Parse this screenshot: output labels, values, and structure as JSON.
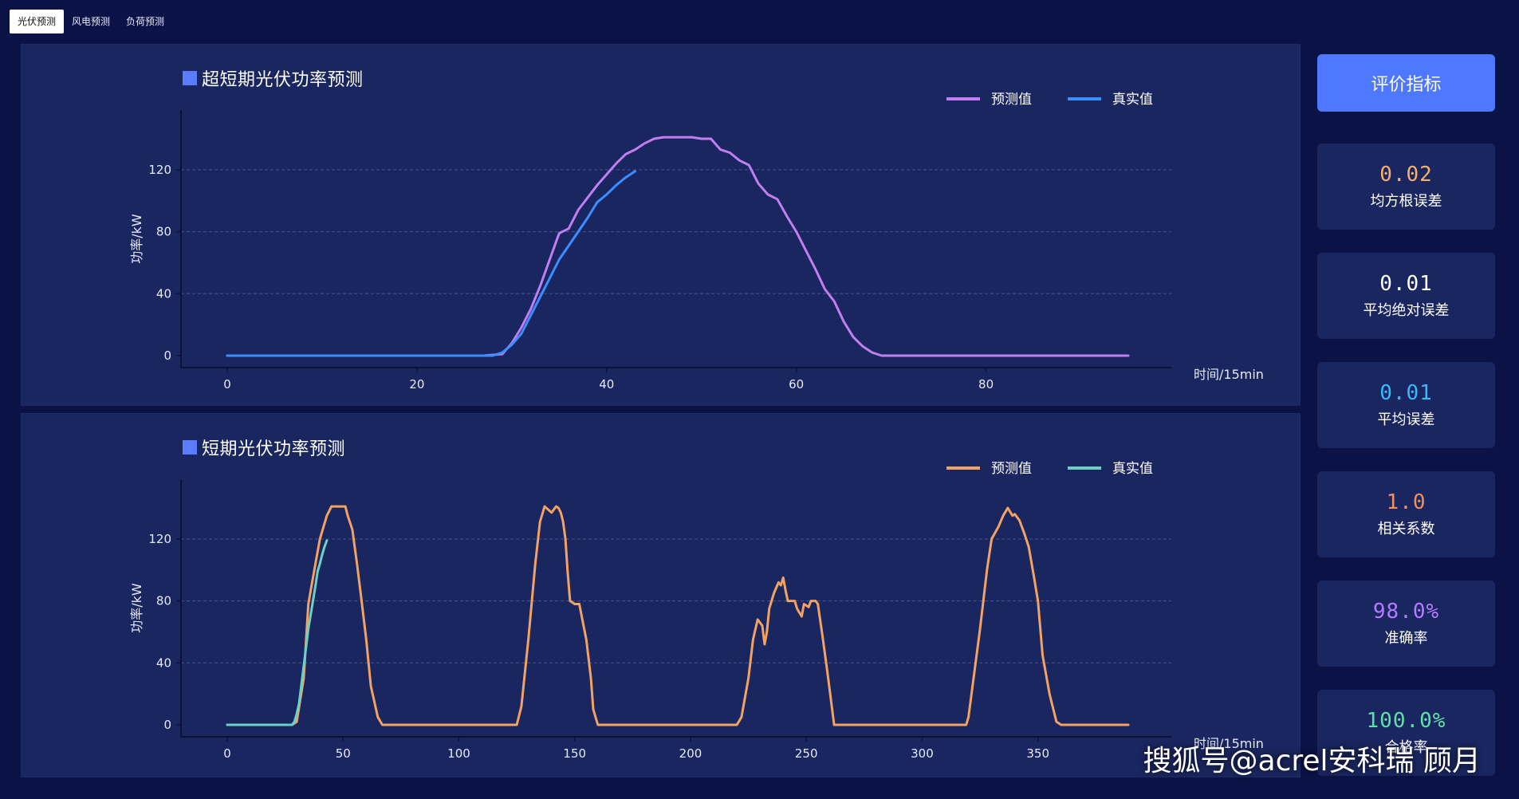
{
  "tabs": [
    {
      "label": "光伏预测",
      "active": true
    },
    {
      "label": "风电预测",
      "active": false
    },
    {
      "label": "负荷预测",
      "active": false
    }
  ],
  "sidebar": {
    "eval_label": "评价指标",
    "metrics": [
      {
        "value": "0.02",
        "label": "均方根误差",
        "color": "#f7b06a"
      },
      {
        "value": "0.01",
        "label": "平均绝对误差",
        "color": "#ffffff"
      },
      {
        "value": "0.01",
        "label": "平均误差",
        "color": "#39b8ff"
      },
      {
        "value": "1.0",
        "label": "相关系数",
        "color": "#f09060"
      },
      {
        "value": "98.0%",
        "label": "准确率",
        "color": "#b57aff"
      },
      {
        "value": "100.0%",
        "label": "合格率",
        "color": "#60e0a8"
      }
    ]
  },
  "watermark": "搜狐号@acrel安科瑞 顾月",
  "chart_data": [
    {
      "type": "line",
      "title": "超短期光伏功率预测",
      "xlabel": "时间/15min",
      "ylabel": "功率/kW",
      "xlim": [
        0,
        95
      ],
      "ylim": [
        0,
        140
      ],
      "xticks": [
        0,
        20,
        40,
        60,
        80
      ],
      "yticks": [
        0,
        40,
        80,
        120
      ],
      "grid": true,
      "legend": "top-right",
      "series": [
        {
          "name": "预测值",
          "color": "#c07ef0",
          "x": [
            0,
            10,
            20,
            27,
            29,
            30,
            31,
            32,
            33,
            34,
            35,
            36,
            37,
            38,
            39,
            40,
            41,
            42,
            43,
            44,
            45,
            46,
            47,
            48,
            49,
            50,
            51,
            52,
            53,
            54,
            55,
            56,
            57,
            58,
            59,
            60,
            61,
            62,
            63,
            64,
            65,
            66,
            67,
            68,
            69,
            70,
            80,
            95
          ],
          "y": [
            0,
            0,
            0,
            0,
            1,
            8,
            18,
            30,
            45,
            62,
            79,
            82,
            94,
            102,
            110,
            117,
            124,
            130,
            133,
            137,
            140,
            141,
            141,
            141,
            141,
            140,
            140,
            133,
            131,
            126,
            123,
            111,
            104,
            101,
            90,
            80,
            68,
            56,
            43,
            35,
            22,
            12,
            6,
            2,
            0,
            0,
            0,
            0
          ]
        },
        {
          "name": "真实值",
          "color": "#3a8eff",
          "x": [
            0,
            10,
            20,
            28,
            29,
            30,
            31,
            32,
            33,
            34,
            35,
            36,
            37,
            38,
            39,
            40,
            41,
            42,
            43
          ],
          "y": [
            0,
            0,
            0,
            0,
            2,
            7,
            14,
            26,
            38,
            50,
            62,
            71,
            80,
            89,
            99,
            104,
            110,
            115,
            119
          ]
        }
      ]
    },
    {
      "type": "line",
      "title": "短期光伏功率预测",
      "xlabel": "时间/15min",
      "ylabel": "功率/kW",
      "xlim": [
        0,
        389
      ],
      "ylim": [
        0,
        140
      ],
      "xticks": [
        0,
        50,
        100,
        150,
        200,
        250,
        300,
        350
      ],
      "yticks": [
        0,
        40,
        80,
        120
      ],
      "grid": true,
      "legend": "top-right",
      "series": [
        {
          "name": "预测值",
          "color": "#f2a265",
          "x": [
            0,
            28,
            30,
            33,
            35,
            37,
            40,
            43,
            45,
            47,
            48,
            50,
            51,
            52,
            54,
            56,
            58,
            60,
            62,
            65,
            67,
            69,
            70,
            125,
            127,
            130,
            133,
            135,
            137,
            140,
            142,
            143,
            144,
            145,
            146,
            147,
            148,
            150,
            152,
            155,
            157,
            158,
            160,
            163,
            165,
            167,
            220,
            222,
            225,
            227,
            229,
            231,
            232,
            233,
            234,
            236,
            238,
            239,
            240,
            241,
            242,
            245,
            246,
            248,
            249,
            251,
            252,
            254,
            255,
            257,
            259,
            262,
            319,
            320,
            325,
            328,
            330,
            333,
            335,
            337,
            339,
            340,
            342,
            344,
            346,
            348,
            350,
            352,
            355,
            358,
            360,
            362,
            389
          ],
          "y": [
            0,
            0,
            2,
            30,
            78,
            95,
            120,
            135,
            141,
            141,
            141,
            141,
            141,
            135,
            126,
            104,
            80,
            55,
            25,
            5,
            0,
            0,
            0,
            0,
            12,
            55,
            104,
            131,
            141,
            137,
            141,
            140,
            137,
            131,
            120,
            98,
            80,
            78,
            78,
            55,
            30,
            10,
            0,
            0,
            0,
            0,
            0,
            5,
            30,
            55,
            68,
            64,
            52,
            60,
            75,
            85,
            92,
            90,
            95,
            87,
            80,
            80,
            75,
            70,
            78,
            76,
            80,
            80,
            78,
            57,
            35,
            0,
            0,
            5,
            62,
            100,
            120,
            128,
            135,
            140,
            135,
            136,
            132,
            124,
            115,
            98,
            80,
            45,
            20,
            2,
            0,
            0,
            0
          ]
        },
        {
          "name": "真实值",
          "color": "#6ed0c4",
          "x": [
            0,
            20,
            28,
            29,
            30,
            31,
            32,
            33,
            34,
            35,
            36,
            37,
            38,
            39,
            40,
            41,
            42,
            43
          ],
          "y": [
            0,
            0,
            0,
            2,
            7,
            14,
            26,
            38,
            50,
            62,
            71,
            80,
            89,
            99,
            104,
            110,
            115,
            119
          ]
        }
      ]
    }
  ]
}
